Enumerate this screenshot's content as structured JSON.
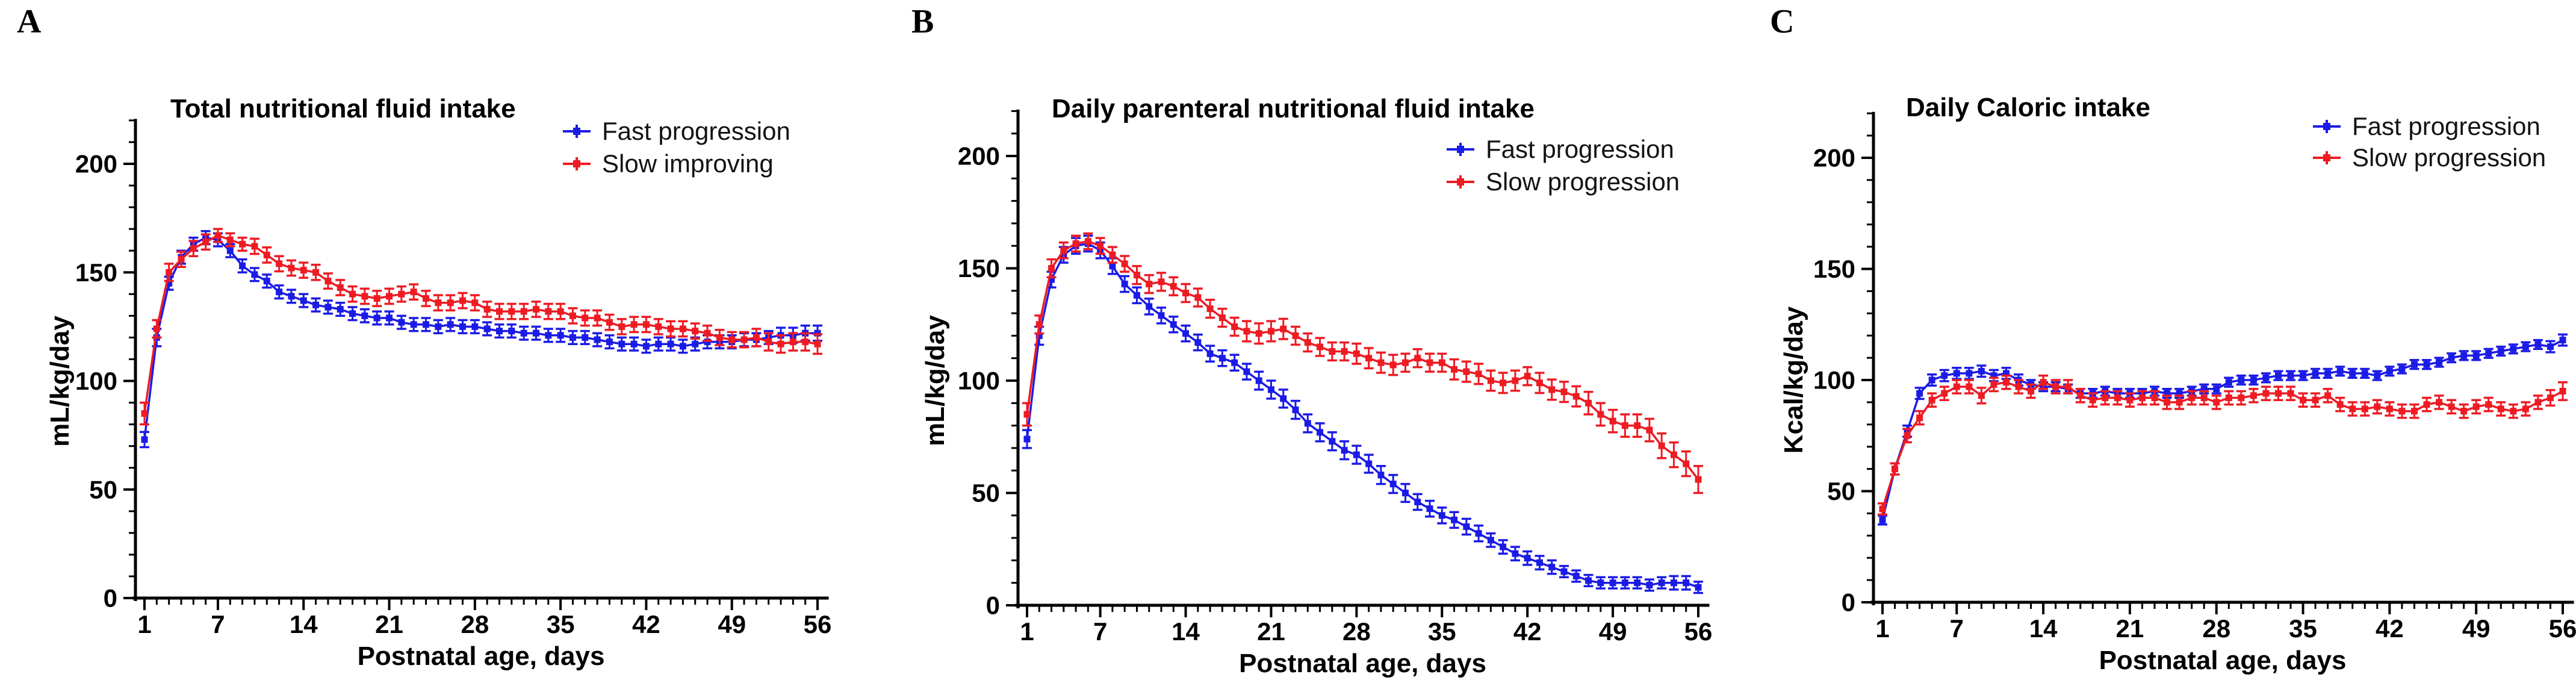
{
  "figure": {
    "xlabel": "Postnatal age, days",
    "x_range": [
      1,
      56
    ],
    "x_step": 1,
    "y_axis_color": "#000000",
    "fast_color": "#1b1be6",
    "slow_color": "#ee1b23"
  },
  "chart_data": [
    {
      "type": "line",
      "panel_label": "A",
      "title": "Total nutritional fluid intake",
      "xlabel": "Postnatal age, days",
      "ylabel": "mL/kg/day",
      "xlim": [
        1,
        56
      ],
      "ylim": [
        0,
        220
      ],
      "xticks": [
        1,
        7,
        14,
        21,
        28,
        35,
        42,
        49,
        56
      ],
      "yticks": [
        0,
        50,
        100,
        150,
        200
      ],
      "x_range": [
        1,
        56
      ],
      "x_step": 1,
      "error_bars": true,
      "legend_position": "top-right",
      "grid": false,
      "series": [
        {
          "name": "Fast progression",
          "color": "#1b1be6",
          "marker": "square",
          "values": [
            73,
            120,
            145,
            157,
            163,
            166,
            165,
            160,
            153,
            149,
            146,
            141,
            139,
            137,
            135,
            134,
            133,
            131,
            130,
            129,
            129,
            127,
            126,
            126,
            125,
            126,
            125,
            125,
            124,
            123,
            123,
            122,
            122,
            121,
            121,
            120,
            120,
            119,
            118,
            117,
            117,
            116,
            117,
            117,
            116,
            117,
            118,
            118,
            118,
            119,
            119,
            120,
            121,
            121,
            122,
            122
          ],
          "err": [
            3.5,
            4,
            3,
            3,
            3,
            3,
            3,
            3,
            3,
            3,
            3,
            3,
            3,
            3,
            3,
            3,
            3,
            3,
            3,
            3,
            3,
            3,
            3,
            3,
            3,
            3,
            3,
            3,
            3,
            3,
            3,
            3,
            3,
            3,
            3,
            3,
            3,
            3,
            3,
            3,
            3,
            3,
            3,
            3,
            3,
            3,
            3,
            3,
            3,
            3,
            3,
            3,
            3.5,
            3.5,
            3.5,
            3.5
          ]
        },
        {
          "name": "Slow improving",
          "color": "#ee1b23",
          "marker": "square",
          "values": [
            85,
            124,
            150,
            156,
            161,
            164,
            167,
            165,
            163,
            162,
            158,
            154,
            152,
            151,
            150,
            146,
            143,
            140,
            139,
            138,
            139,
            140,
            141,
            138,
            136,
            136,
            137,
            136,
            133,
            132,
            132,
            132,
            133,
            132,
            132,
            130,
            129,
            129,
            127,
            125,
            126,
            126,
            125,
            124,
            124,
            123,
            122,
            120,
            119,
            119,
            120,
            118,
            117,
            118,
            118,
            117
          ],
          "err": [
            5,
            4,
            4,
            3.5,
            3.5,
            3.5,
            3,
            3,
            3,
            3.5,
            3.5,
            3.5,
            3.5,
            3.5,
            3.5,
            3.5,
            3.5,
            3.5,
            3.5,
            3.5,
            3.5,
            3.5,
            3.5,
            3.5,
            3.5,
            3.5,
            3.5,
            3.5,
            3.5,
            3.5,
            3.5,
            3.5,
            3.5,
            3.5,
            3.5,
            3.5,
            3.5,
            3.5,
            3.5,
            3.5,
            3.5,
            3.5,
            3.5,
            3.5,
            3.5,
            3.5,
            3.5,
            3.5,
            3.5,
            3.5,
            4,
            4,
            4,
            4,
            4,
            4.5
          ]
        }
      ]
    },
    {
      "type": "line",
      "panel_label": "B",
      "title": "Daily parenteral nutritional fluid intake",
      "xlabel": "Postnatal age, days",
      "ylabel": "mL/kg/day",
      "xlim": [
        1,
        56
      ],
      "ylim": [
        0,
        220
      ],
      "xticks": [
        1,
        7,
        14,
        21,
        28,
        35,
        42,
        49,
        56
      ],
      "yticks": [
        0,
        50,
        100,
        150,
        200
      ],
      "x_range": [
        1,
        56
      ],
      "x_step": 1,
      "error_bars": true,
      "legend_position": "top-right",
      "grid": false,
      "series": [
        {
          "name": "Fast progression",
          "color": "#1b1be6",
          "marker": "square",
          "values": [
            74,
            120,
            145,
            156,
            160,
            161,
            158,
            151,
            143,
            138,
            133,
            129,
            125,
            121,
            117,
            112,
            110,
            108,
            104,
            100,
            96,
            92,
            87,
            81,
            77,
            73,
            69,
            67,
            63,
            58,
            54,
            50,
            46,
            43,
            40,
            38,
            35,
            32,
            29,
            26,
            23,
            21,
            19,
            17,
            15,
            13,
            11,
            10,
            10,
            10,
            10,
            9,
            10,
            10,
            10,
            8
          ],
          "err": [
            4,
            4,
            3.5,
            3.5,
            3.5,
            3.5,
            3.5,
            3.5,
            3.5,
            3.5,
            3.5,
            3.5,
            3.5,
            3.5,
            3.5,
            3.5,
            3.5,
            3.5,
            3.5,
            4,
            4,
            4,
            4,
            4,
            4,
            4,
            4,
            4,
            4,
            4,
            4,
            4,
            3.5,
            3.5,
            3.5,
            3.5,
            3.5,
            3.5,
            3,
            3,
            3,
            3,
            3,
            3,
            2.5,
            2.5,
            2.5,
            2.5,
            2.5,
            2.5,
            2.5,
            2.5,
            2.5,
            3,
            3,
            2.5
          ]
        },
        {
          "name": "Slow progression",
          "color": "#ee1b23",
          "marker": "square",
          "values": [
            85,
            125,
            150,
            158,
            161,
            162,
            160,
            156,
            152,
            147,
            143,
            144,
            142,
            139,
            137,
            132,
            128,
            124,
            122,
            121,
            122,
            123,
            120,
            117,
            115,
            113,
            113,
            112,
            110,
            108,
            107,
            108,
            110,
            108,
            108,
            105,
            104,
            103,
            100,
            99,
            100,
            102,
            99,
            96,
            95,
            93,
            90,
            85,
            82,
            80,
            80,
            78,
            71,
            67,
            63,
            56
          ],
          "err": [
            5,
            4,
            4,
            3.5,
            3.5,
            3.5,
            3.5,
            3.5,
            3.5,
            4,
            4,
            4,
            4,
            4,
            4,
            4,
            4,
            4,
            4.5,
            4.5,
            4.5,
            4.5,
            4,
            4,
            4,
            4,
            4,
            4.5,
            4.5,
            4.5,
            4.5,
            4,
            4,
            4,
            4,
            4.5,
            4.5,
            4.5,
            4.5,
            4.5,
            4.5,
            4,
            4.5,
            4.5,
            4.5,
            4.5,
            5,
            5,
            5,
            5,
            5,
            5,
            5.5,
            5.5,
            5.5,
            6
          ]
        }
      ]
    },
    {
      "type": "line",
      "panel_label": "C",
      "title": "Daily Caloric intake",
      "xlabel": "Postnatal age, days",
      "ylabel": "Kcal/kg/day",
      "xlim": [
        1,
        56
      ],
      "ylim": [
        0,
        220
      ],
      "xticks": [
        1,
        7,
        14,
        21,
        28,
        35,
        42,
        49,
        56
      ],
      "yticks": [
        0,
        50,
        100,
        150,
        200
      ],
      "x_range": [
        1,
        56
      ],
      "x_step": 1,
      "error_bars": true,
      "legend_position": "top-right",
      "grid": false,
      "series": [
        {
          "name": "Fast progression",
          "color": "#1b1be6",
          "marker": "square",
          "values": [
            37,
            60,
            77,
            94,
            100,
            102,
            103,
            103,
            104,
            102,
            103,
            100,
            98,
            97,
            97,
            96,
            94,
            94,
            95,
            94,
            94,
            94,
            95,
            94,
            94,
            95,
            96,
            96,
            99,
            100,
            100,
            101,
            102,
            102,
            102,
            103,
            103,
            104,
            103,
            103,
            102,
            104,
            105,
            107,
            107,
            108,
            110,
            111,
            111,
            112,
            113,
            114,
            115,
            116,
            115,
            118
          ],
          "err": [
            2,
            2.5,
            2.5,
            2.5,
            2.5,
            2.5,
            2.5,
            2.5,
            2.5,
            2.5,
            2.5,
            2.5,
            2,
            2,
            2,
            2,
            2,
            2,
            2,
            2,
            2,
            2,
            2,
            2,
            2,
            2,
            2,
            2,
            2,
            2,
            2,
            2,
            2,
            2,
            2,
            2,
            2,
            2,
            2,
            2,
            2,
            2,
            2,
            2,
            2,
            2,
            2,
            2,
            2,
            2,
            2,
            2,
            2,
            2,
            2.5,
            2.5
          ]
        },
        {
          "name": "Slow progression",
          "color": "#ee1b23",
          "marker": "square",
          "values": [
            42,
            60,
            75,
            83,
            91,
            94,
            97,
            97,
            93,
            98,
            99,
            97,
            95,
            99,
            97,
            97,
            93,
            91,
            92,
            92,
            91,
            92,
            92,
            90,
            90,
            92,
            92,
            90,
            92,
            92,
            93,
            94,
            94,
            94,
            91,
            91,
            93,
            89,
            87,
            87,
            88,
            87,
            86,
            86,
            89,
            90,
            88,
            86,
            88,
            89,
            87,
            86,
            87,
            90,
            92,
            95
          ],
          "err": [
            2.5,
            2.5,
            3,
            3,
            3,
            3,
            3,
            3,
            3.5,
            3,
            3,
            3,
            3,
            3,
            3,
            3,
            3,
            3,
            3,
            3,
            3,
            3,
            3,
            3,
            3,
            3,
            3,
            3,
            3,
            3,
            3,
            3,
            3,
            3,
            3,
            3,
            3,
            3,
            3,
            3,
            3,
            3,
            3,
            3,
            3,
            3,
            3,
            3,
            3,
            3,
            3,
            3,
            3,
            3,
            3.5,
            4
          ]
        }
      ]
    }
  ]
}
